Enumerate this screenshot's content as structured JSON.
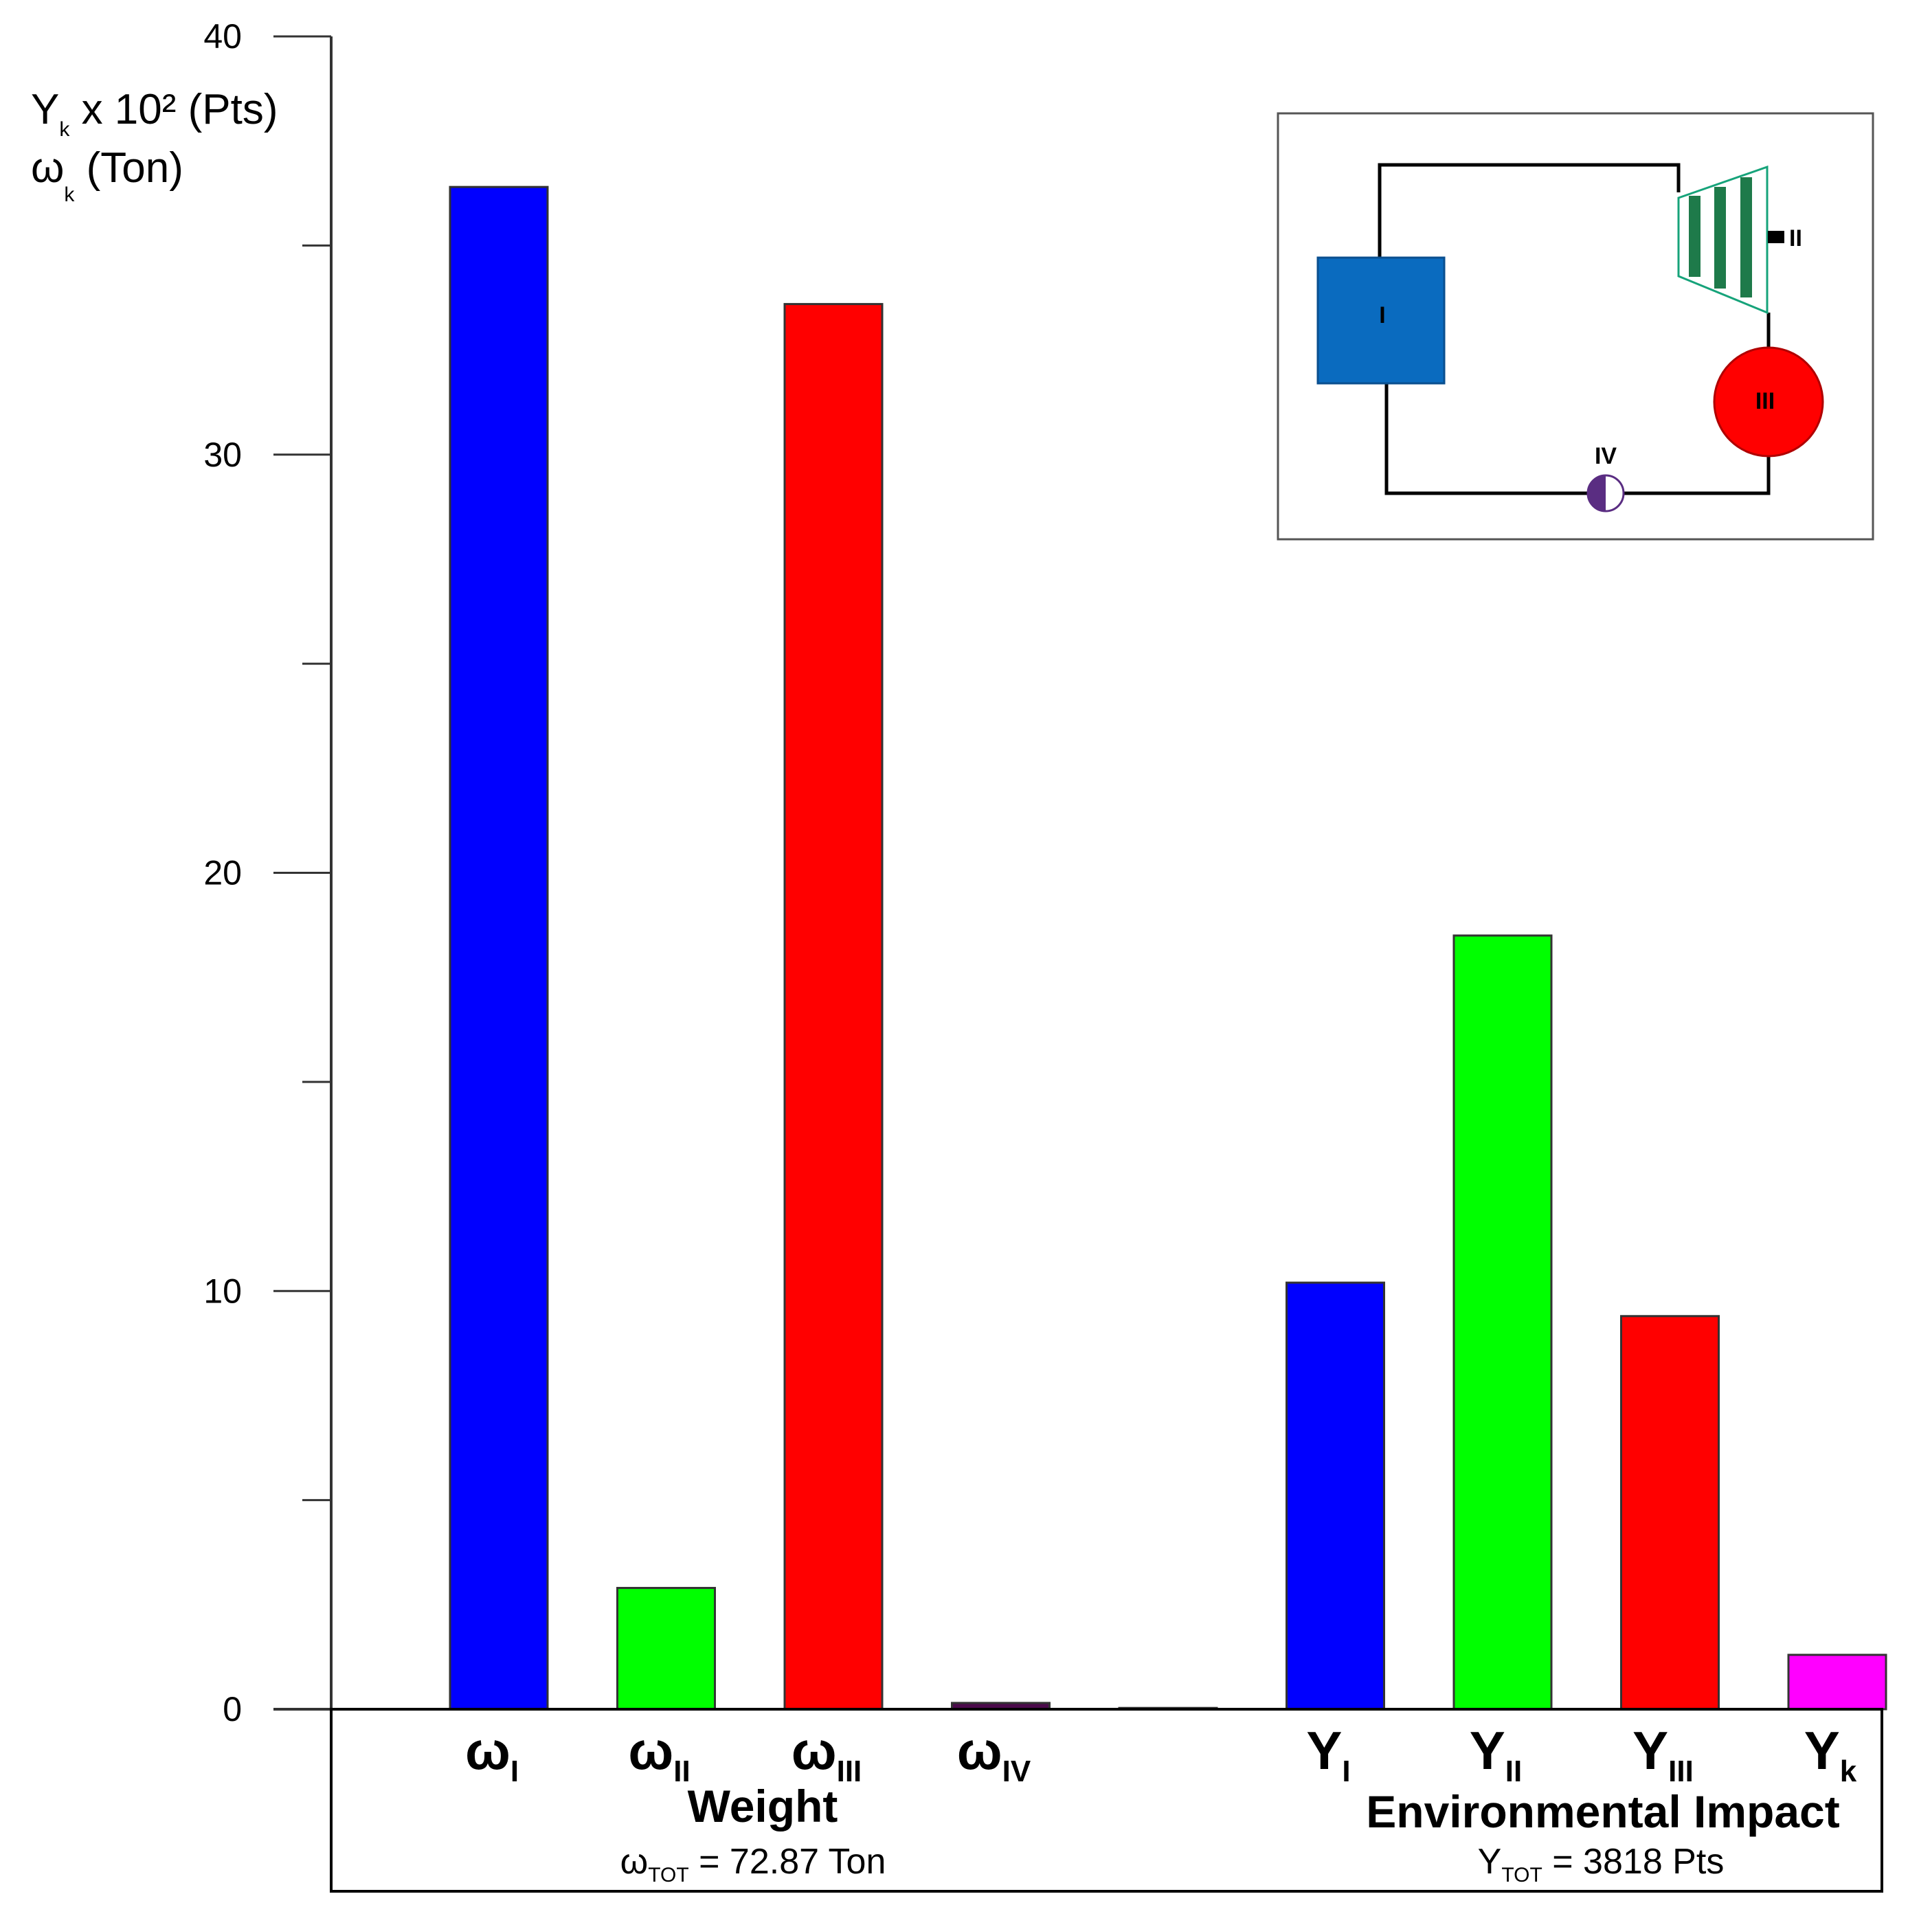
{
  "chart_data": {
    "type": "bar",
    "ylim": [
      0,
      40
    ],
    "y_major_ticks": [
      0,
      10,
      20,
      30,
      40
    ],
    "y_minor_step": 5,
    "ylabel": {
      "line1": {
        "main": "Y",
        "sub": "k",
        "rest": " x 10² (Pts)"
      },
      "line2": {
        "main": "ω",
        "sub": "k",
        "rest": " (Ton)"
      }
    },
    "bars": [
      {
        "id": "w1",
        "main": "ω",
        "sub": "I",
        "value": 36.4,
        "color": "#0000ff"
      },
      {
        "id": "w2",
        "main": "ω",
        "sub": "II",
        "value": 2.9,
        "color": "#00ff00"
      },
      {
        "id": "w3",
        "main": "ω",
        "sub": "III",
        "value": 33.6,
        "color": "#ff0000"
      },
      {
        "id": "w4",
        "main": "ω",
        "sub": "IV",
        "value": 0.15,
        "color": "#4b0a4b"
      },
      {
        "id": "gap",
        "main": "",
        "sub": "",
        "value": 0.03,
        "color": "#333333"
      },
      {
        "id": "y1",
        "main": "Y",
        "sub": "I",
        "value": 10.2,
        "color": "#0000ff"
      },
      {
        "id": "y2",
        "main": "Y",
        "sub": "II",
        "value": 18.5,
        "color": "#00ff00"
      },
      {
        "id": "y3",
        "main": "Y",
        "sub": "III",
        "value": 9.4,
        "color": "#ff0000"
      },
      {
        "id": "yk",
        "main": "Y",
        "sub": "k",
        "value": 1.3,
        "color": "#ff00ff"
      }
    ],
    "groups": [
      {
        "title": "Weight",
        "total_main": "ω",
        "total_sub": "TOT",
        "total_rest": " = 72.87 Ton"
      },
      {
        "title": "Environmental Impact",
        "total_main": "Y",
        "total_sub": "TOT",
        "total_rest": " = 3818 Pts"
      }
    ]
  },
  "inset": {
    "components": [
      {
        "label": "I",
        "color": "#0a6bbf"
      },
      {
        "label": "II",
        "color": "#1e7a4a"
      },
      {
        "label": "III",
        "color": "#ff0000"
      },
      {
        "label": "IV",
        "color": "#5a2d82"
      }
    ]
  }
}
